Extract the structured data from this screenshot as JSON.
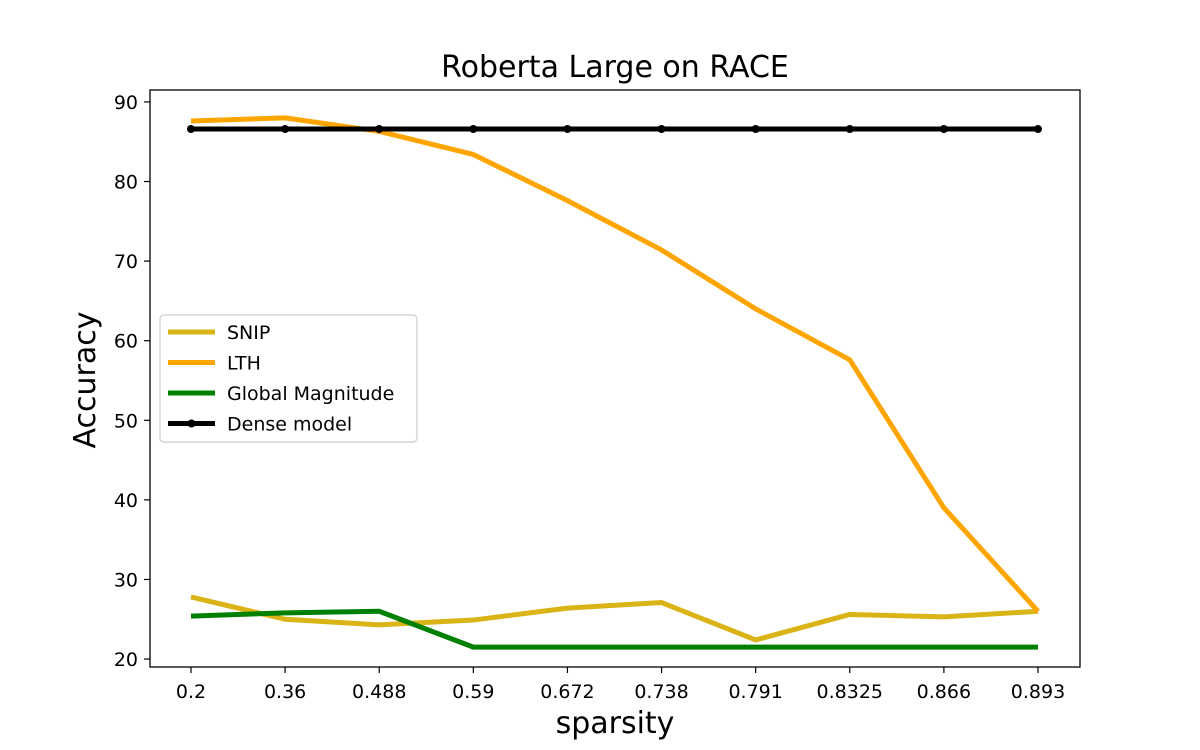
{
  "chart_data": {
    "type": "line",
    "title": "Roberta Large on RACE",
    "xlabel": "sparsity",
    "ylabel": "Accuracy",
    "categories": [
      "0.2",
      "0.36",
      "0.488",
      "0.59",
      "0.672",
      "0.738",
      "0.791",
      "0.8325",
      "0.866",
      "0.893"
    ],
    "yticks": [
      20,
      30,
      40,
      50,
      60,
      70,
      80,
      90
    ],
    "ylim": [
      19,
      91.5
    ],
    "grid": false,
    "legend_position": "center-left",
    "series": [
      {
        "name": "SNIP",
        "color": "#DAB316",
        "marker": false,
        "values": [
          27.8,
          25.0,
          24.3,
          24.9,
          26.4,
          27.1,
          22.4,
          25.6,
          25.3,
          26.0
        ]
      },
      {
        "name": "LTH",
        "color": "#FFA500",
        "marker": false,
        "values": [
          87.6,
          88.0,
          86.3,
          83.4,
          77.6,
          71.4,
          64.0,
          57.6,
          39.0,
          26.0
        ]
      },
      {
        "name": "Global Magnitude",
        "color": "#008000",
        "marker": false,
        "values": [
          25.4,
          25.8,
          26.0,
          21.5,
          21.5,
          21.5,
          21.5,
          21.5,
          21.5,
          21.5
        ]
      },
      {
        "name": "Dense model",
        "color": "#000000",
        "marker": true,
        "values": [
          86.6,
          86.6,
          86.6,
          86.6,
          86.6,
          86.6,
          86.6,
          86.6,
          86.6,
          86.6
        ]
      }
    ]
  }
}
